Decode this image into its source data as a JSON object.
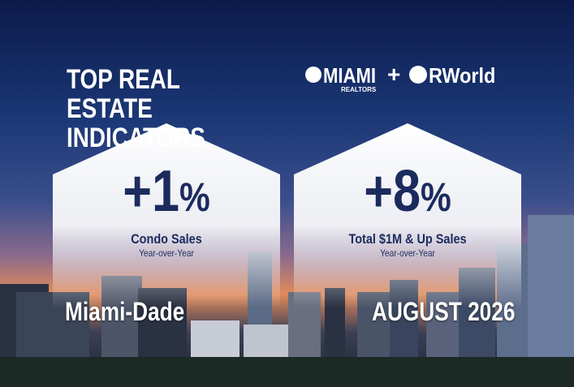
{
  "header": {
    "title": "TOP REAL ESTATE INDICATORS",
    "logo_left": "MIAMI",
    "logo_left_sub": "REALTORS",
    "logo_joiner": "+",
    "logo_right": "RWorld"
  },
  "cards": [
    {
      "value": "+1",
      "unit": "%",
      "label": "Condo Sales",
      "sublabel": "Year-over-Year",
      "footer": "Miami-Dade"
    },
    {
      "value": "+8",
      "unit": "%",
      "label": "Total $1M & Up Sales",
      "sublabel": "Year-over-Year",
      "footer": "AUGUST 2026"
    }
  ]
}
